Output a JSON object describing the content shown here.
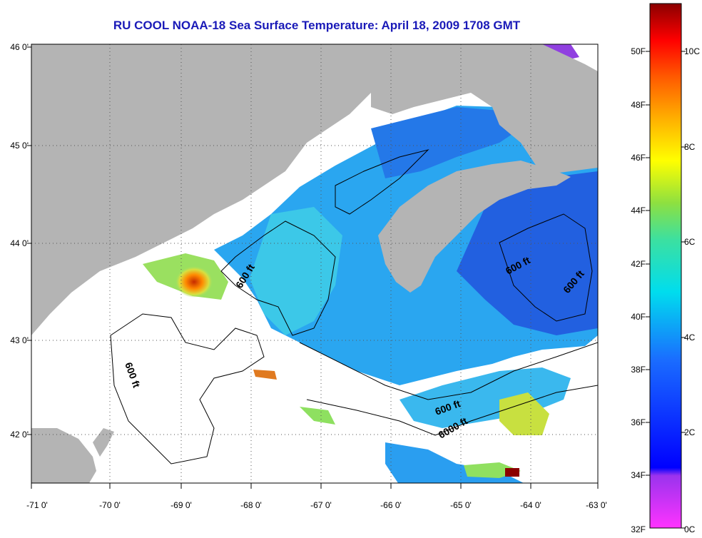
{
  "title": "RU COOL  NOAA-18  Sea Surface Temperature:  April 18, 2009 1708 GMT",
  "colors": {
    "land": "#b4b4b4",
    "no_data": "#ffffff",
    "contour": "#000000",
    "grid": "#555555"
  },
  "axes": {
    "x_ticks": [
      "-71 0'",
      "-70 0'",
      "-69 0'",
      "-68 0'",
      "-67 0'",
      "-66 0'",
      "-65 0'",
      "-64 0'",
      "-63 0'"
    ],
    "y_ticks": [
      "46 0'",
      "45 0'",
      "44 0'",
      "43 0'",
      "42 0'"
    ]
  },
  "contour_labels": [
    "600 ft",
    "600 ft",
    "600 ft",
    "600 ft",
    "600 ft",
    "6000 ft"
  ],
  "colorbar": {
    "fahrenheit_labels": [
      "50F",
      "48F",
      "46F",
      "44F",
      "42F",
      "40F",
      "38F",
      "36F",
      "34F",
      "32F"
    ],
    "celsius_labels": [
      "10C",
      "8C",
      "6C",
      "4C",
      "2C",
      "0C"
    ]
  }
}
